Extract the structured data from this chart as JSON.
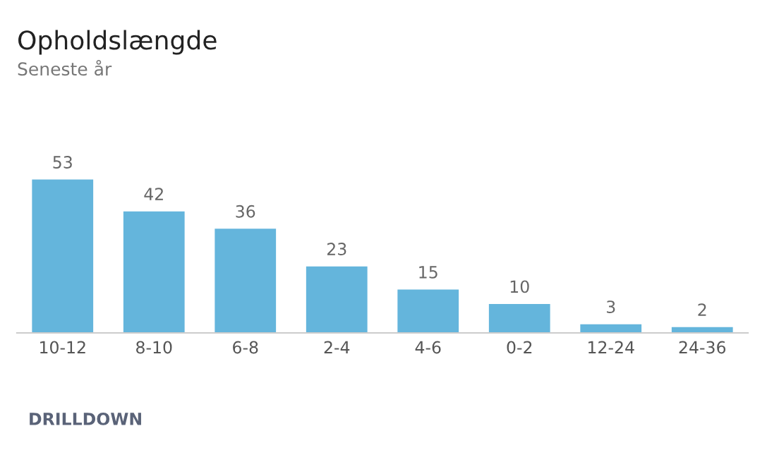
{
  "chart_data": {
    "type": "bar",
    "title": "Opholdslængde",
    "subtitle": "Seneste år",
    "categories": [
      "10-12",
      "8-10",
      "6-8",
      "2-4",
      "4-6",
      "0-2",
      "12-24",
      "24-36"
    ],
    "values": [
      53,
      42,
      36,
      23,
      15,
      10,
      3,
      2
    ],
    "color": "#64b5dc",
    "data_labels": true,
    "annotations": [
      "DRILLDOWN"
    ]
  }
}
